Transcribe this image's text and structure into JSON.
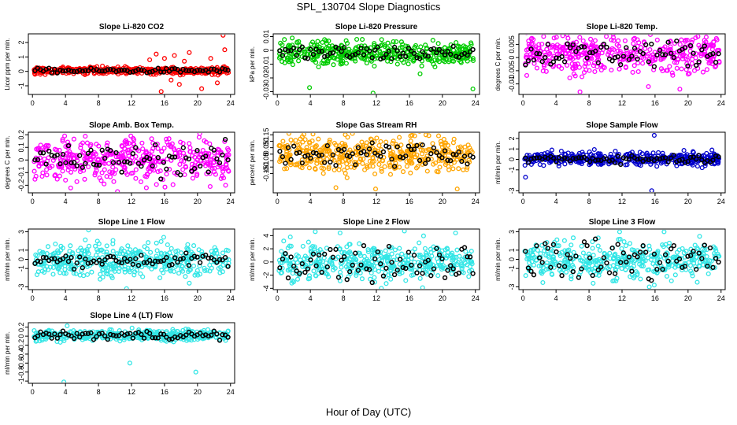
{
  "page": {
    "title": "SPL_130704  Slope Diagnostics",
    "xlabel": "Hour of Day (UTC)"
  },
  "chart_data": [
    {
      "type": "scatter",
      "title": "Slope Li-820 CO2",
      "ylabel": "Licor ppm per min.",
      "xlim": [
        -0.5,
        24.5
      ],
      "ylim": [
        -1.6,
        2.6
      ],
      "xticks": [
        0,
        4,
        8,
        12,
        16,
        20,
        24
      ],
      "yticks": [
        -1,
        0,
        1,
        2
      ],
      "color": "#ff0000",
      "center": 0.05,
      "spread": 0.12,
      "black_spread": 0.08,
      "outliers": [
        [
          14.2,
          0.8
        ],
        [
          15.0,
          1.2
        ],
        [
          15.6,
          -1.4
        ],
        [
          16.0,
          0.9
        ],
        [
          17.2,
          1.1
        ],
        [
          17.8,
          -0.9
        ],
        [
          19.0,
          1.3
        ],
        [
          20.5,
          -1.2
        ],
        [
          21.6,
          0.9
        ],
        [
          23.1,
          2.5
        ],
        [
          23.3,
          1.5
        ],
        [
          22.4,
          -0.8
        ],
        [
          16.8,
          -0.6
        ],
        [
          18.4,
          0.7
        ]
      ]
    },
    {
      "type": "scatter",
      "title": "Slope Li-820 Pressure",
      "ylabel": "kPa per min.",
      "xlim": [
        -0.5,
        24.5
      ],
      "ylim": [
        -0.032,
        0.012
      ],
      "xticks": [
        0,
        4,
        8,
        12,
        16,
        20,
        24
      ],
      "yticks": [
        -0.03,
        -0.02,
        -0.01,
        0.0,
        0.01
      ],
      "color": "#00cc00",
      "center": -0.002,
      "spread": 0.004,
      "black_spread": 0.003,
      "outliers": [
        [
          1.8,
          0.009
        ],
        [
          0.9,
          -0.009
        ],
        [
          3.9,
          -0.027
        ],
        [
          5.0,
          -0.012
        ],
        [
          9.0,
          -0.006
        ],
        [
          11.6,
          -0.031
        ],
        [
          17.3,
          -0.017
        ],
        [
          19.1,
          -0.012
        ],
        [
          23.7,
          -0.028
        ],
        [
          2.4,
          0.006
        ]
      ]
    },
    {
      "type": "scatter",
      "title": "Slope Li-820 Temp.",
      "ylabel": "degrees C per min.",
      "xlim": [
        -0.5,
        24.5
      ],
      "ylim": [
        -0.014,
        0.009
      ],
      "xticks": [
        0,
        4,
        8,
        12,
        16,
        20,
        24
      ],
      "yticks": [
        -0.01,
        -0.005,
        0.0,
        0.005
      ],
      "color": "#ff00ff",
      "center": 0.0015,
      "spread": 0.0035,
      "black_spread": 0.0025,
      "outliers": [
        [
          2.5,
          0.008
        ],
        [
          6.9,
          -0.013
        ],
        [
          10.1,
          0.008
        ],
        [
          13.4,
          0.007
        ],
        [
          15.2,
          -0.011
        ],
        [
          19.0,
          -0.012
        ],
        [
          21.2,
          0.008
        ],
        [
          23.1,
          0.006
        ]
      ]
    },
    {
      "type": "scatter",
      "title": "Slope Amb. Box Temp.",
      "ylabel": "degrees C per min.",
      "xlim": [
        -0.5,
        24.5
      ],
      "ylim": [
        -0.26,
        0.22
      ],
      "xticks": [
        0,
        4,
        8,
        12,
        16,
        20,
        24
      ],
      "yticks": [
        -0.2,
        -0.1,
        0.0,
        0.1,
        0.2
      ],
      "color": "#ff00ff",
      "center": 0.0,
      "spread": 0.085,
      "black_spread": 0.06,
      "outliers": [
        [
          3.9,
          0.19
        ],
        [
          10.3,
          -0.25
        ],
        [
          12.3,
          0.16
        ],
        [
          13.8,
          -0.22
        ],
        [
          20.2,
          0.18
        ],
        [
          23.4,
          -0.2
        ]
      ]
    },
    {
      "type": "scatter",
      "title": "Slope Gas Stream RH",
      "ylabel": "percent per min.",
      "xlim": [
        -0.5,
        24.5
      ],
      "ylim": [
        -0.3,
        0.17
      ],
      "xticks": [
        0,
        4,
        8,
        12,
        16,
        20,
        24
      ],
      "yticks": [
        -0.15,
        -0.1,
        -0.05,
        0.0,
        0.05,
        0.1,
        0.15
      ],
      "color": "#ffa500",
      "center": 0.0,
      "spread": 0.07,
      "black_spread": 0.045,
      "outliers": [
        [
          1.4,
          0.16
        ],
        [
          7.1,
          -0.26
        ],
        [
          9.1,
          0.16
        ],
        [
          11.9,
          -0.27
        ],
        [
          18.0,
          0.15
        ],
        [
          21.8,
          -0.27
        ]
      ]
    },
    {
      "type": "scatter",
      "title": "Slope Sample Flow",
      "ylabel": "ml/min per min.",
      "xlim": [
        -0.5,
        24.5
      ],
      "ylim": [
        -3.2,
        2.6
      ],
      "xticks": [
        0,
        4,
        8,
        12,
        16,
        20,
        24
      ],
      "yticks": [
        -3,
        -1,
        0,
        1,
        2
      ],
      "color": "#0000cc",
      "center": 0.05,
      "spread": 0.3,
      "black_spread": 0.2,
      "outliers": [
        [
          0.3,
          -1.7
        ],
        [
          3.5,
          0.9
        ],
        [
          15.9,
          2.3
        ],
        [
          15.6,
          -3.0
        ],
        [
          21.7,
          -0.8
        ],
        [
          22.9,
          0.9
        ]
      ]
    },
    {
      "type": "scatter",
      "title": "Slope Line 1 Flow",
      "ylabel": "ml/min per min.",
      "xlim": [
        -0.5,
        24.5
      ],
      "ylim": [
        -3.3,
        3.3
      ],
      "xticks": [
        0,
        4,
        8,
        12,
        16,
        20,
        24
      ],
      "yticks": [
        -3,
        -1,
        0,
        1,
        3
      ],
      "color": "#33e6e6",
      "center": -0.1,
      "spread": 0.9,
      "black_spread": 0.35,
      "outliers": [
        [
          6.8,
          3.2
        ],
        [
          11.4,
          -3.2
        ],
        [
          15.9,
          2.4
        ],
        [
          19.0,
          -2.6
        ]
      ]
    },
    {
      "type": "scatter",
      "title": "Slope Line 2 Flow",
      "ylabel": "ml/min per min.",
      "xlim": [
        -0.5,
        24.5
      ],
      "ylim": [
        -4.2,
        5.0
      ],
      "xticks": [
        0,
        4,
        8,
        12,
        16,
        20,
        24
      ],
      "yticks": [
        -4,
        -2,
        0,
        2,
        4
      ],
      "color": "#33e6e6",
      "center": 0.0,
      "spread": 1.3,
      "black_spread": 1.4,
      "outliers": [
        [
          4.6,
          4.6
        ],
        [
          7.6,
          4.4
        ],
        [
          12.6,
          -4.0
        ],
        [
          15.4,
          4.7
        ],
        [
          17.6,
          -3.9
        ],
        [
          21.6,
          4.4
        ]
      ]
    },
    {
      "type": "scatter",
      "title": "Slope Line 3 Flow",
      "ylabel": "ml/min per min.",
      "xlim": [
        -0.5,
        24.5
      ],
      "ylim": [
        -3.3,
        3.3
      ],
      "xticks": [
        0,
        4,
        8,
        12,
        16,
        20,
        24
      ],
      "yticks": [
        -3,
        -1,
        0,
        1,
        3
      ],
      "color": "#33e6e6",
      "center": -0.1,
      "spread": 1.0,
      "black_spread": 1.1,
      "outliers": [
        [
          11.7,
          3.0
        ],
        [
          15.3,
          -3.0
        ],
        [
          15.9,
          -2.8
        ],
        [
          17.1,
          3.0
        ],
        [
          21.4,
          2.5
        ]
      ]
    },
    {
      "type": "scatter",
      "title": "Slope Line 4 (LT) Flow",
      "ylabel": "ml/min per min.",
      "xlim": [
        -0.5,
        24.5
      ],
      "ylim": [
        -1.05,
        0.3
      ],
      "xticks": [
        0,
        4,
        8,
        12,
        16,
        20,
        24
      ],
      "yticks": [
        -1.0,
        -0.8,
        -0.6,
        -0.4,
        -0.2,
        0.0,
        0.2
      ],
      "color": "#33e6e6",
      "center": 0.02,
      "spread": 0.06,
      "black_spread": 0.05,
      "outliers": [
        [
          3.8,
          -1.02
        ],
        [
          4.2,
          0.23
        ],
        [
          11.8,
          -0.6
        ],
        [
          19.8,
          -0.8
        ],
        [
          17.0,
          0.15
        ]
      ]
    }
  ]
}
